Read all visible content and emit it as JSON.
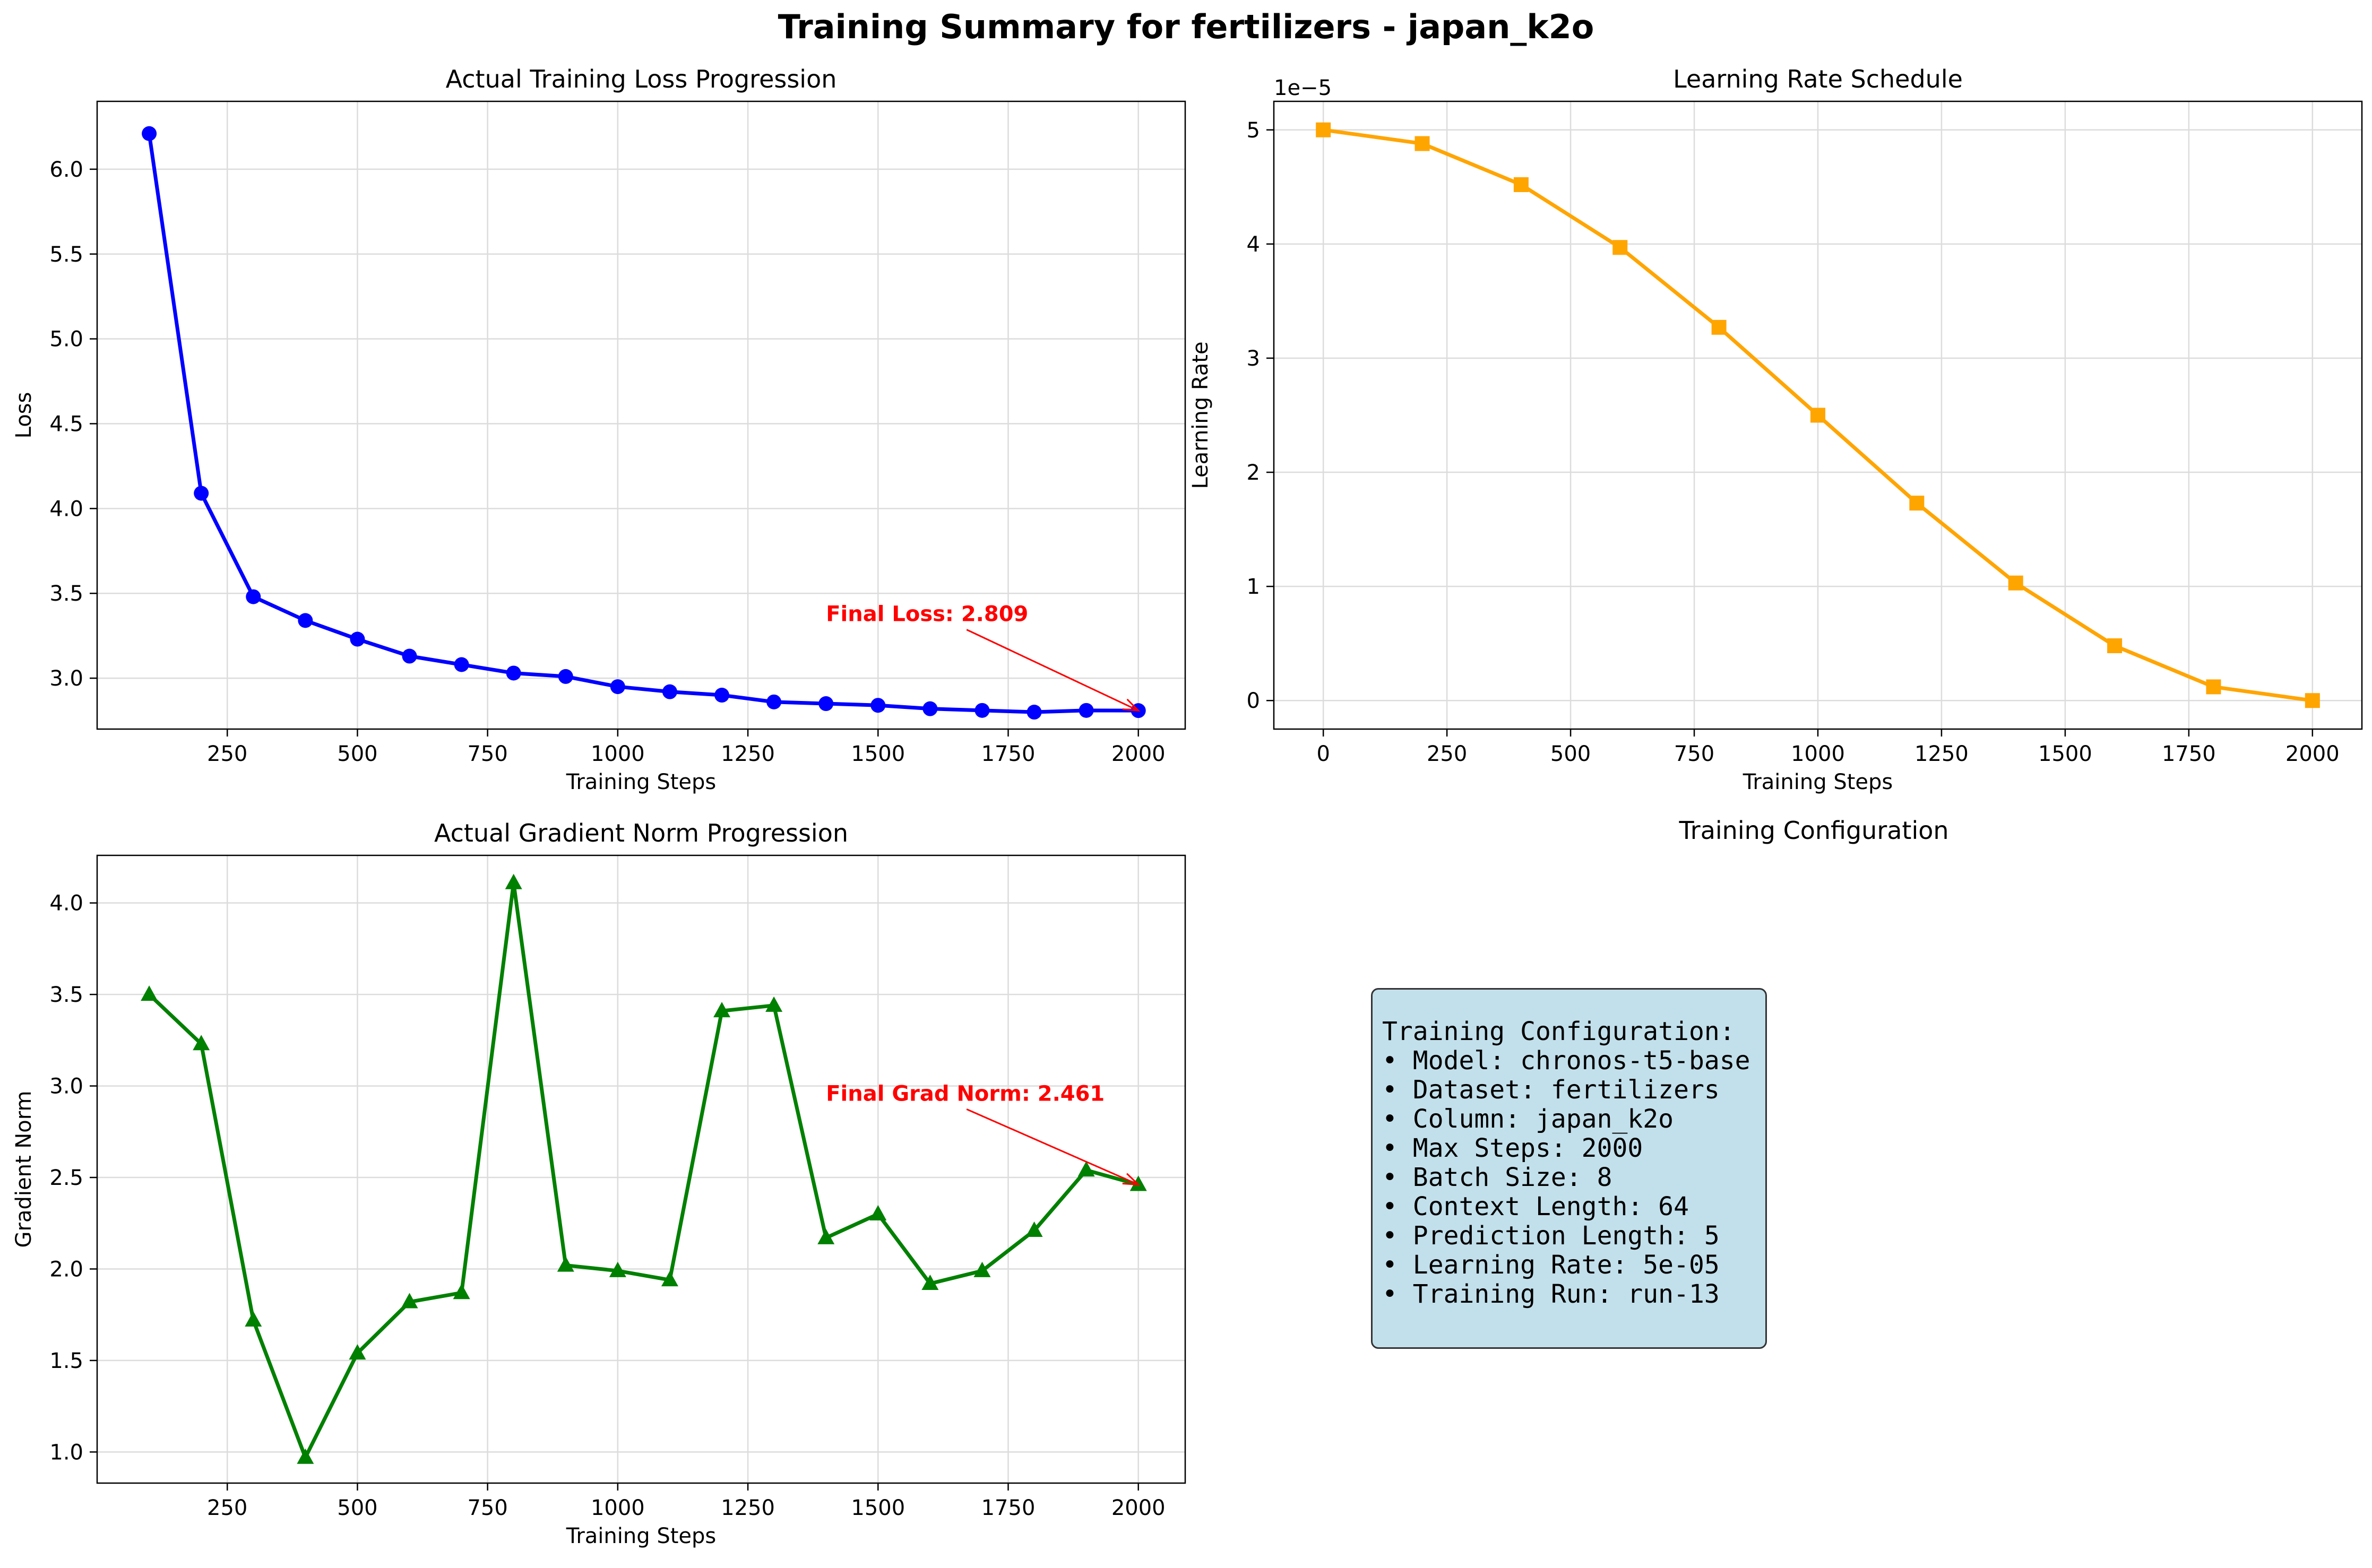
{
  "figure": {
    "title": "Training Summary for fertilizers - japan_k2o"
  },
  "chart_data": [
    {
      "type": "line",
      "title": "Actual Training Loss Progression",
      "xlabel": "Training Steps",
      "ylabel": "Loss",
      "xlim": [
        0,
        2090
      ],
      "ylim": [
        2.7,
        6.4
      ],
      "xticks": [
        250,
        500,
        750,
        1000,
        1250,
        1500,
        1750,
        2000
      ],
      "yticks": [
        3.0,
        3.5,
        4.0,
        4.5,
        5.0,
        5.5,
        6.0
      ],
      "ytick_decimals": 1,
      "grid": true,
      "color": "#0000ff",
      "marker": "circle",
      "x": [
        100,
        200,
        300,
        400,
        500,
        600,
        700,
        800,
        900,
        1000,
        1100,
        1200,
        1300,
        1400,
        1500,
        1600,
        1700,
        1800,
        1900,
        2000
      ],
      "y": [
        6.21,
        4.09,
        3.48,
        3.34,
        3.23,
        3.13,
        3.08,
        3.03,
        3.01,
        2.95,
        2.92,
        2.9,
        2.86,
        2.85,
        2.84,
        2.82,
        2.81,
        2.8,
        2.81,
        2.809
      ],
      "annotation": {
        "text": "Final Loss: 2.809",
        "text_x": 1400,
        "text_y": 3.38,
        "x": 2000,
        "y": 2.809,
        "color": "#ff0000"
      }
    },
    {
      "type": "line",
      "title": "Learning Rate Schedule",
      "xlabel": "Training Steps",
      "ylabel": "Learning Rate",
      "offset_label": "1e−5",
      "scale": 100000,
      "xlim": [
        -100,
        2100
      ],
      "ylim": [
        -2.5e-06,
        5.25e-05
      ],
      "xticks": [
        0,
        250,
        500,
        750,
        1000,
        1250,
        1500,
        1750,
        2000
      ],
      "yticks": [
        0,
        1e-05,
        2e-05,
        3e-05,
        4e-05,
        5e-05
      ],
      "ytick_decimals": 0,
      "grid": true,
      "color": "#ffa500",
      "marker": "square",
      "x": [
        0,
        200,
        400,
        600,
        800,
        1000,
        1200,
        1400,
        1600,
        1800,
        2000
      ],
      "y": [
        5e-05,
        4.88e-05,
        4.52e-05,
        3.97e-05,
        3.27e-05,
        2.5e-05,
        1.73e-05,
        1.03e-05,
        4.8e-06,
        1.2e-06,
        0
      ]
    },
    {
      "type": "line",
      "title": "Actual Gradient Norm Progression",
      "xlabel": "Training Steps",
      "ylabel": "Gradient Norm",
      "xlim": [
        0,
        2090
      ],
      "ylim": [
        0.83,
        4.26
      ],
      "xticks": [
        250,
        500,
        750,
        1000,
        1250,
        1500,
        1750,
        2000
      ],
      "yticks": [
        1.0,
        1.5,
        2.0,
        2.5,
        3.0,
        3.5,
        4.0
      ],
      "ytick_decimals": 1,
      "grid": true,
      "color": "#008000",
      "marker": "triangle",
      "x": [
        100,
        200,
        300,
        400,
        500,
        600,
        700,
        800,
        900,
        1000,
        1100,
        1200,
        1300,
        1400,
        1500,
        1600,
        1700,
        1800,
        1900,
        2000
      ],
      "y": [
        3.5,
        3.23,
        1.72,
        0.97,
        1.54,
        1.82,
        1.87,
        4.11,
        2.02,
        1.99,
        1.94,
        3.41,
        3.44,
        2.17,
        2.3,
        1.92,
        1.99,
        2.21,
        2.54,
        2.461
      ],
      "annotation": {
        "text": "Final Grad Norm: 2.461",
        "text_x": 1400,
        "text_y": 2.96,
        "x": 2000,
        "y": 2.461,
        "color": "#ff0000"
      }
    }
  ],
  "config": {
    "title": "Training Configuration",
    "lines": [
      "Training Configuration:",
      "• Model: chronos-t5-base",
      "• Dataset: fertilizers",
      "• Column: japan_k2o",
      "• Max Steps: 2000",
      "• Batch Size: 8",
      "• Context Length: 64",
      "• Prediction Length: 5",
      "• Learning Rate: 5e-05",
      "• Training Run: run-13"
    ]
  }
}
